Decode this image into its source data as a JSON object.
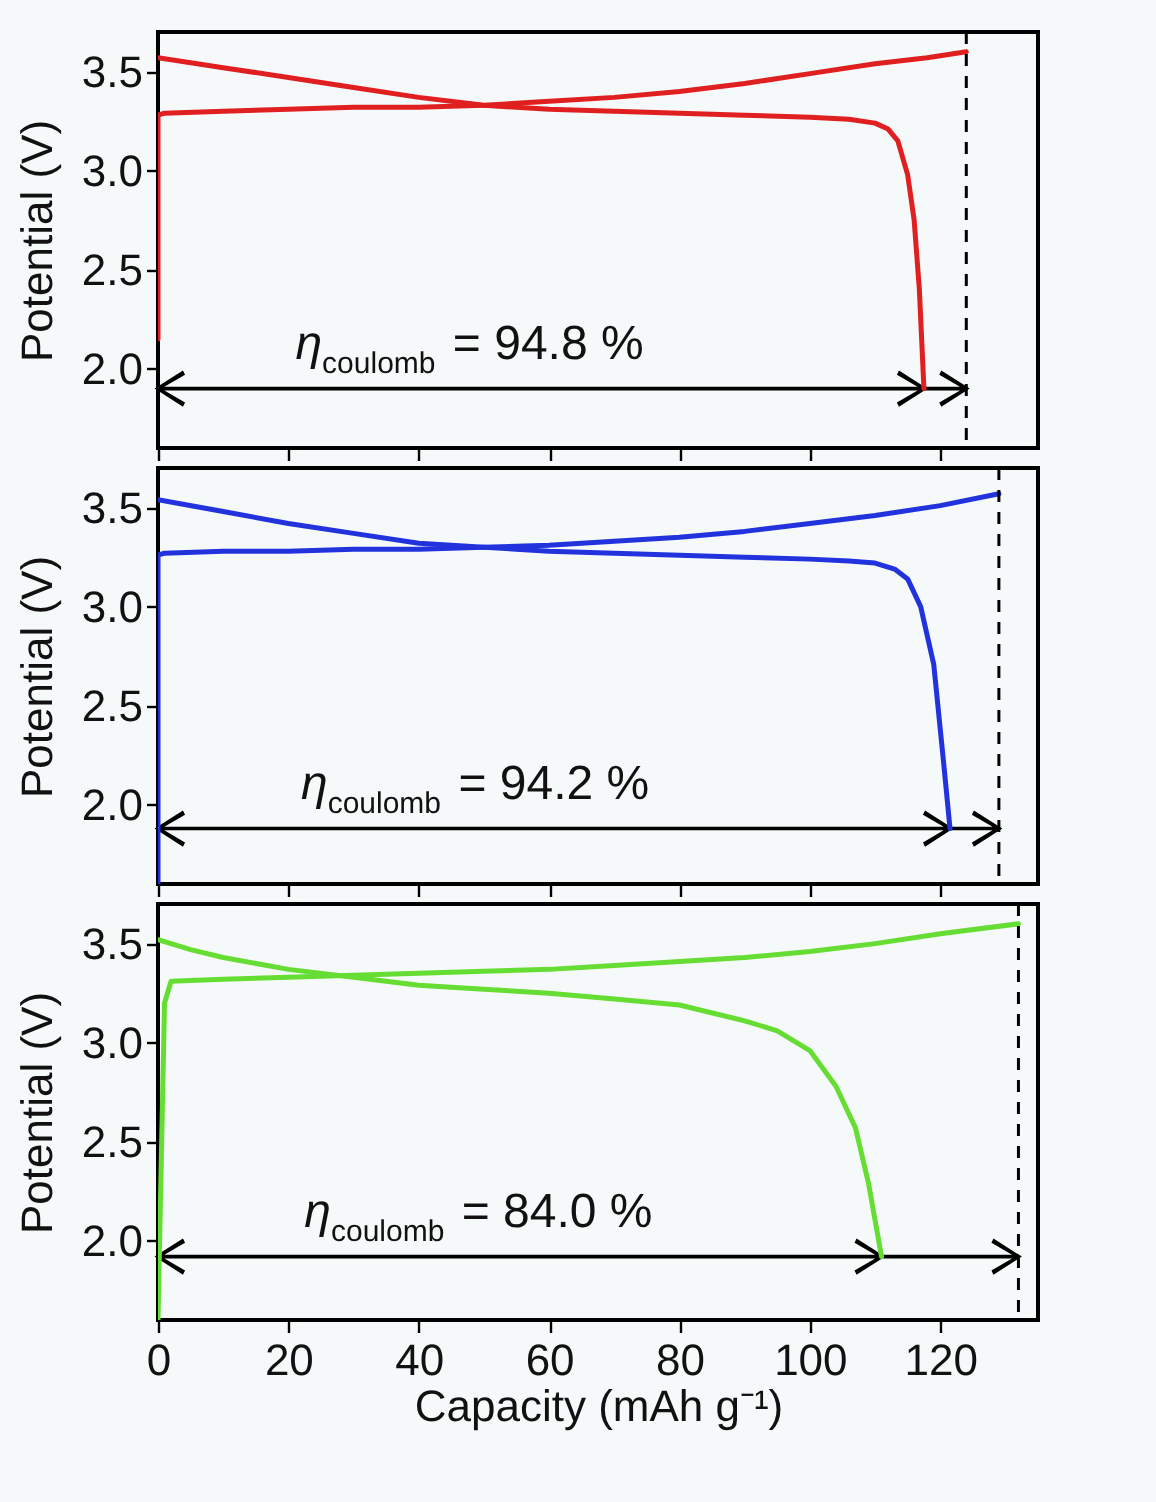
{
  "chart_data": [
    {
      "type": "line",
      "ylabel": "Potential (V)",
      "xlim": [
        0,
        135
      ],
      "ylim": [
        1.6,
        3.7
      ],
      "xticks": [
        0,
        20,
        40,
        60,
        80,
        100,
        120
      ],
      "yticks": [
        {
          "value": 2,
          "label": "2.0"
        },
        {
          "value": 2.5,
          "label": "2.5"
        },
        {
          "value": 3,
          "label": "3.0"
        },
        {
          "value": 3.5,
          "label": "3.5"
        }
      ],
      "tick_labels": "y",
      "line_style": "solid",
      "marker": "none",
      "series": [
        {
          "color": "#e02020",
          "x": [
            0,
            0,
            1,
            10,
            20,
            30,
            40,
            50,
            60,
            70,
            80,
            90,
            100,
            110,
            118,
            124
          ],
          "values": [
            2.15,
            3.28,
            3.29,
            3.3,
            3.31,
            3.32,
            3.32,
            3.33,
            3.35,
            3.37,
            3.4,
            3.44,
            3.49,
            3.54,
            3.57,
            3.6
          ]
        },
        {
          "color": "#e02020",
          "x": [
            0,
            10,
            20,
            30,
            40,
            50,
            60,
            70,
            80,
            90,
            100,
            106,
            110,
            112,
            113.5,
            115,
            116,
            116.8,
            117.5
          ],
          "values": [
            3.57,
            3.52,
            3.47,
            3.42,
            3.37,
            3.33,
            3.31,
            3.3,
            3.29,
            3.28,
            3.27,
            3.26,
            3.24,
            3.21,
            3.15,
            2.98,
            2.75,
            2.4,
            1.9
          ]
        }
      ],
      "ref_lines": [
        {
          "axis": "x",
          "value": 124,
          "line_style": "dashed",
          "color": "#000000"
        }
      ],
      "annotations": [
        "η$_{coulomb}$ = 94.8 %"
      ]
    },
    {
      "type": "line",
      "ylabel": "Potential (V)",
      "xlim": [
        0,
        135
      ],
      "ylim": [
        1.6,
        3.7
      ],
      "xticks": [
        0,
        20,
        40,
        60,
        80,
        100,
        120
      ],
      "yticks": [
        {
          "value": 2,
          "label": "2.0"
        },
        {
          "value": 2.5,
          "label": "2.5"
        },
        {
          "value": 3,
          "label": "3.0"
        },
        {
          "value": 3.5,
          "label": "3.5"
        }
      ],
      "tick_labels": "y",
      "line_style": "solid",
      "marker": "none",
      "series": [
        {
          "color": "#2233dd",
          "x": [
            0,
            0,
            1,
            10,
            20,
            30,
            40,
            50,
            60,
            70,
            80,
            90,
            100,
            110,
            120,
            129
          ],
          "values": [
            1.6,
            3.26,
            3.27,
            3.28,
            3.28,
            3.29,
            3.29,
            3.3,
            3.31,
            3.33,
            3.35,
            3.38,
            3.42,
            3.46,
            3.51,
            3.57
          ]
        },
        {
          "color": "#2233dd",
          "x": [
            0,
            10,
            20,
            30,
            40,
            50,
            60,
            70,
            80,
            90,
            100,
            106,
            110,
            113,
            115,
            117,
            119,
            120.5,
            121.5
          ],
          "values": [
            3.54,
            3.48,
            3.42,
            3.37,
            3.32,
            3.3,
            3.28,
            3.27,
            3.26,
            3.25,
            3.24,
            3.23,
            3.22,
            3.19,
            3.14,
            3.0,
            2.71,
            2.22,
            1.88
          ]
        }
      ],
      "ref_lines": [
        {
          "axis": "x",
          "value": 129,
          "line_style": "dashed",
          "color": "#000000"
        }
      ],
      "annotations": [
        "η$_{coulomb}$ = 94.2 %"
      ]
    },
    {
      "type": "line",
      "xlabel": "Capacity (mAh g⁻¹)",
      "ylabel": "Potential (V)",
      "xlim": [
        0,
        135
      ],
      "ylim": [
        1.6,
        3.7
      ],
      "xticks": [
        0,
        20,
        40,
        60,
        80,
        100,
        120
      ],
      "yticks": [
        {
          "value": 2,
          "label": "2.0"
        },
        {
          "value": 2.5,
          "label": "2.5"
        },
        {
          "value": 3,
          "label": "3.0"
        },
        {
          "value": 3.5,
          "label": "3.5"
        }
      ],
      "line_style": "solid",
      "marker": "none",
      "series": [
        {
          "color": "#66dd33",
          "x": [
            0,
            1,
            2,
            10,
            20,
            30,
            40,
            50,
            60,
            70,
            80,
            90,
            100,
            110,
            120,
            132
          ],
          "values": [
            1.6,
            3.2,
            3.31,
            3.32,
            3.33,
            3.34,
            3.35,
            3.36,
            3.37,
            3.39,
            3.41,
            3.43,
            3.46,
            3.5,
            3.55,
            3.6
          ]
        },
        {
          "color": "#66dd33",
          "x": [
            0,
            5,
            10,
            20,
            30,
            40,
            50,
            60,
            70,
            80,
            90,
            95,
            100,
            104,
            107,
            109,
            111
          ],
          "values": [
            3.52,
            3.47,
            3.43,
            3.37,
            3.33,
            3.29,
            3.27,
            3.25,
            3.22,
            3.19,
            3.11,
            3.06,
            2.96,
            2.78,
            2.57,
            2.29,
            1.92
          ]
        }
      ],
      "ref_lines": [
        {
          "axis": "x",
          "value": 132,
          "line_style": "dashed",
          "color": "#000000"
        }
      ],
      "annotations": [
        "η$_{coulomb}$ = 84.0 %"
      ]
    }
  ]
}
